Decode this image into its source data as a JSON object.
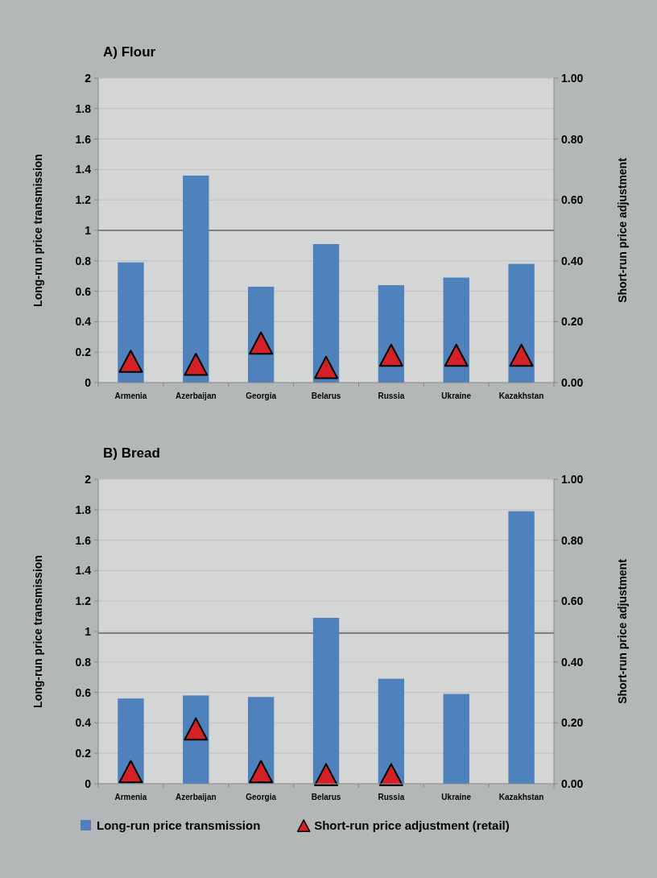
{
  "chart_data": [
    {
      "type": "bar",
      "title": "A) Flour",
      "ylabel": "Long-run price transmission",
      "y2label": "Short-run price adjustment",
      "categories": [
        "Armenia",
        "Azerbaijan",
        "Georgia",
        "Belarus",
        "Russia",
        "Ukraine",
        "Kazakhstan"
      ],
      "series": [
        {
          "color": "#4f81bd",
          "values": [
            0.79,
            1.36,
            0.63,
            0.91,
            0.64,
            0.69,
            0.78
          ]
        },
        {
          "type": "scatter",
          "axis": "y2",
          "marker": "triangle",
          "color": "#d42027",
          "values": [
            0.07,
            0.06,
            0.13,
            0.05,
            0.09,
            0.09,
            0.09
          ]
        }
      ],
      "ylim": [
        0,
        2
      ],
      "yticks": [
        0,
        0.2,
        0.4,
        0.6,
        0.8,
        1,
        1.2,
        1.4,
        1.6,
        1.8,
        2
      ],
      "y2lim": [
        0,
        1
      ],
      "y2ticks": [
        {
          "value": 0,
          "label": "0.00"
        },
        {
          "value": 0.2,
          "label": "0.20"
        },
        {
          "value": 0.4,
          "label": "0.40"
        },
        {
          "value": 0.6,
          "label": "0.60"
        },
        {
          "value": 0.8,
          "label": "0.80"
        },
        {
          "value": 1,
          "label": "1.00"
        }
      ],
      "ref_lines": [
        {
          "axis": "y",
          "value": 1,
          "color": "#808080"
        }
      ],
      "grid": "y",
      "legend": false
    },
    {
      "type": "bar",
      "title": "B) Bread",
      "ylabel": "Long-run price transmission",
      "y2label": "Short-run price adjustment",
      "categories": [
        "Armenia",
        "Azerbaijan",
        "Georgia",
        "Belarus",
        "Russia",
        "Ukraine",
        "Kazakhstan"
      ],
      "series": [
        {
          "name": "Long-run price transmission",
          "color": "#4f81bd",
          "values": [
            0.56,
            0.58,
            0.57,
            1.09,
            0.69,
            0.59,
            1.79
          ]
        },
        {
          "type": "scatter",
          "axis": "y2",
          "marker": "triangle",
          "name": "Short-run price adjustment (retail)",
          "color": "#d42027",
          "values": [
            0.04,
            0.18,
            0.04,
            0.03,
            0.03,
            null,
            null
          ]
        }
      ],
      "ylim": [
        0,
        2
      ],
      "yticks": [
        0,
        0.2,
        0.4,
        0.6,
        0.8,
        1,
        1.2,
        1.4,
        1.6,
        1.8,
        2
      ],
      "y2lim": [
        0,
        1
      ],
      "y2ticks": [
        {
          "value": 0,
          "label": "0.00"
        },
        {
          "value": 0.2,
          "label": "0.20"
        },
        {
          "value": 0.4,
          "label": "0.40"
        },
        {
          "value": 0.6,
          "label": "0.60"
        },
        {
          "value": 0.8,
          "label": "0.80"
        },
        {
          "value": 1,
          "label": "1.00"
        }
      ],
      "ref_lines": [
        {
          "axis": "y",
          "value": 0.99,
          "color": "#808080"
        }
      ],
      "grid": "y",
      "legend": "bottom"
    }
  ]
}
